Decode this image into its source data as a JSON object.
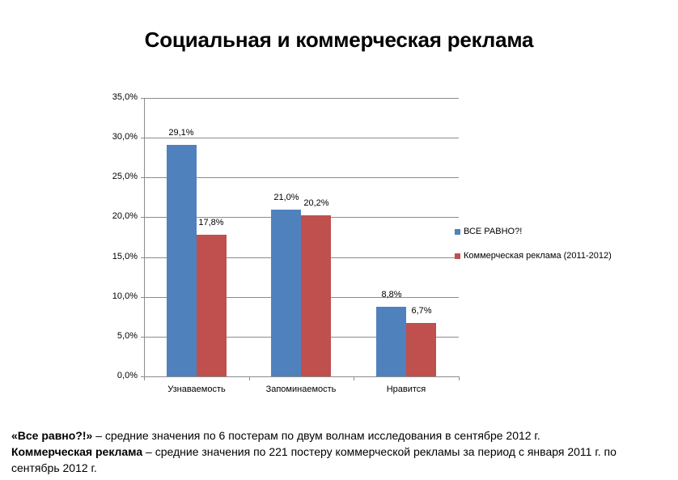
{
  "title": "Социальная и коммерческая реклама",
  "chart_data": {
    "type": "bar",
    "title": "Социальная и коммерческая реклама",
    "categories": [
      "Узнаваемость",
      "Запоминаемость",
      "Нравится"
    ],
    "series": [
      {
        "name": "ВСЕ РАВНО?!",
        "color": "#4f81bd",
        "values": [
          29.1,
          21.0,
          8.8
        ],
        "labels": [
          "29,1%",
          "21,0%",
          "8,8%"
        ]
      },
      {
        "name": "Коммерческая реклама (2011-2012)",
        "color": "#c0504d",
        "values": [
          17.8,
          20.2,
          6.7
        ],
        "labels": [
          "17,8%",
          "20,2%",
          "6,7%"
        ]
      }
    ],
    "xlabel": "",
    "ylabel": "",
    "ylim": [
      0,
      35
    ],
    "yticks": [
      "0,0%",
      "5,0%",
      "10,0%",
      "15,0%",
      "20,0%",
      "25,0%",
      "30,0%",
      "35,0%"
    ],
    "grid": true,
    "legend_position": "right"
  },
  "notes": {
    "line1_bold": "«Все равно?!»",
    "line1_text": " – средние значения по 6 постерам по двум волнам исследования в сентябре 2012 г.",
    "line2_bold": "Коммерческая реклама",
    "line2_text": " – средние значения по  221 постеру коммерческой рекламы за период с января 2011 г. по сентябрь 2012 г."
  }
}
